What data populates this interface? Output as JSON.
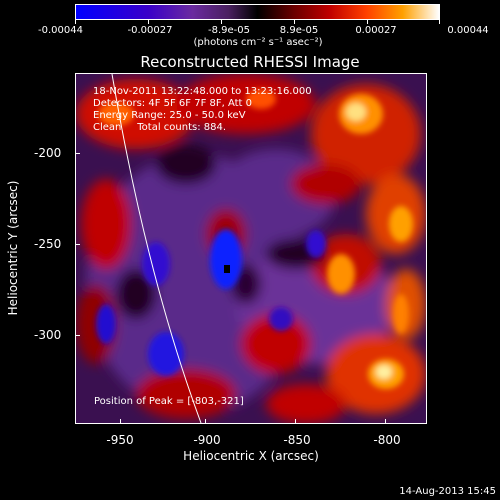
{
  "colorbar": {
    "labels": [
      "-0.00044",
      "-0.00027",
      "-8.9e-05",
      "8.9e-05",
      "0.00027",
      "0.00044"
    ],
    "units": "(photons cm⁻² s⁻¹ asec⁻²)"
  },
  "title": "Reconstructed RHESSI Image",
  "info": {
    "line1": "18-Nov-2011 13:22:48.000 to 13:23:16.000",
    "line2": "Detectors: 4F 5F 6F 7F 8F, Att 0",
    "line3": "Energy Range: 25.0 - 50.0 keV",
    "line4": "Clean     Total counts: 884."
  },
  "peak": "Position of Peak = [-803,-321]",
  "axes": {
    "xlabel": "Heliocentric X (arcsec)",
    "ylabel": "Heliocentric Y (arcsec)",
    "xticks": [
      "-950",
      "-900",
      "-850",
      "-800"
    ],
    "yticks": [
      "-200",
      "-250",
      "-300"
    ]
  },
  "timestamp": "14-Aug-2013 15:45"
}
